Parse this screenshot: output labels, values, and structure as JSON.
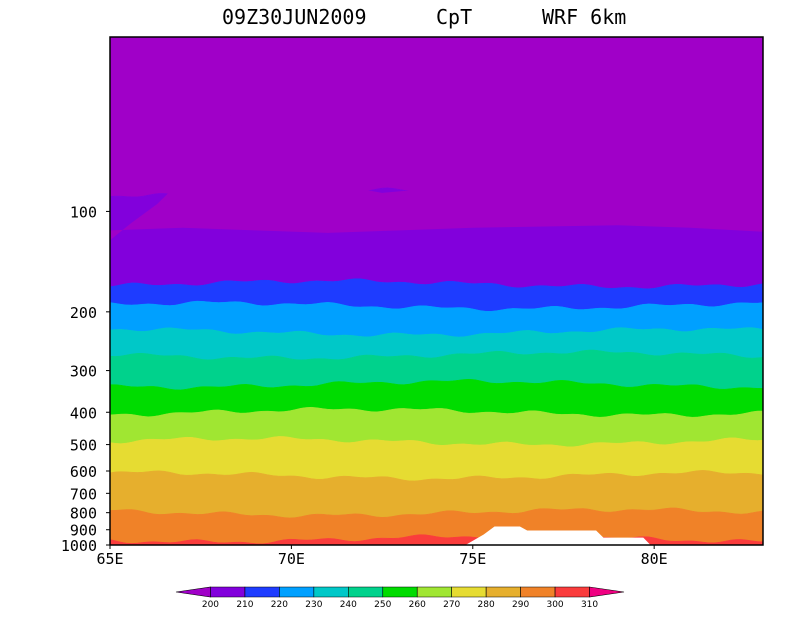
{
  "chart_data": {
    "type": "heatmap",
    "title_parts": [
      "09Z30JUN2009",
      "CpT",
      "WRF 6km"
    ],
    "xlabel": "",
    "ylabel": "",
    "x_range": [
      65,
      83
    ],
    "x_ticks": [
      {
        "value": 65,
        "label": "65E"
      },
      {
        "value": 70,
        "label": "70E"
      },
      {
        "value": 75,
        "label": "75E"
      },
      {
        "value": 80,
        "label": "80E"
      }
    ],
    "y_axis": "log-pressure (hPa)",
    "y_range": [
      1000,
      30
    ],
    "y_ticks": [
      {
        "value": 100,
        "label": "100"
      },
      {
        "value": 200,
        "label": "200"
      },
      {
        "value": 300,
        "label": "300"
      },
      {
        "value": 400,
        "label": "400"
      },
      {
        "value": 500,
        "label": "500"
      },
      {
        "value": 600,
        "label": "600"
      },
      {
        "value": 700,
        "label": "700"
      },
      {
        "value": 800,
        "label": "800"
      },
      {
        "value": 900,
        "label": "900"
      },
      {
        "value": 1000,
        "label": "1000"
      }
    ],
    "colorbar": {
      "levels": [
        "200",
        "210",
        "220",
        "230",
        "240",
        "250",
        "260",
        "270",
        "280",
        "290",
        "300",
        "310"
      ],
      "colors": [
        "#a000c8",
        "#8200dc",
        "#1e3cff",
        "#00a0ff",
        "#00c8c8",
        "#00d28c",
        "#00dc00",
        "#a0e632",
        "#e6dc32",
        "#e6af2d",
        "#f08228",
        "#fa3c3c",
        "#f00082"
      ]
    },
    "bands": [
      {
        "range": "<200",
        "color": "#a000c8",
        "upper_hpa": 30,
        "lower_hpa": 88
      },
      {
        "range": "200-210",
        "color": "#8200dc",
        "upper_hpa": 88,
        "lower_hpa": 165
      },
      {
        "range": "210-220",
        "color": "#1e3cff",
        "upper_hpa": 165,
        "lower_hpa": 192
      },
      {
        "range": "220-230",
        "color": "#00a0ff",
        "upper_hpa": 192,
        "lower_hpa": 230
      },
      {
        "range": "230-240",
        "color": "#00c8c8",
        "upper_hpa": 230,
        "lower_hpa": 270
      },
      {
        "range": "240-250",
        "color": "#00d28c",
        "upper_hpa": 270,
        "lower_hpa": 330
      },
      {
        "range": "250-260",
        "color": "#00dc00",
        "upper_hpa": 330,
        "lower_hpa": 400
      },
      {
        "range": "260-270",
        "color": "#a0e632",
        "upper_hpa": 400,
        "lower_hpa": 490
      },
      {
        "range": "270-280",
        "color": "#e6dc32",
        "upper_hpa": 490,
        "lower_hpa": 620
      },
      {
        "range": "280-290",
        "color": "#e6af2d",
        "upper_hpa": 620,
        "lower_hpa": 800
      },
      {
        "range": "290-300",
        "color": "#f08228",
        "upper_hpa": 800,
        "lower_hpa": 960
      },
      {
        "range": "300-310",
        "color": "#fa3c3c",
        "upper_hpa": 960,
        "lower_hpa": 1000
      }
    ],
    "terrain_mask": {
      "color": "#ffffff",
      "profile": [
        {
          "lon": 74.8,
          "hpa": 1000
        },
        {
          "lon": 75.3,
          "hpa": 930
        },
        {
          "lon": 75.6,
          "hpa": 880
        },
        {
          "lon": 76.3,
          "hpa": 880
        },
        {
          "lon": 76.5,
          "hpa": 905
        },
        {
          "lon": 78.4,
          "hpa": 905
        },
        {
          "lon": 78.6,
          "hpa": 950
        },
        {
          "lon": 79.7,
          "hpa": 950
        },
        {
          "lon": 79.9,
          "hpa": 1000
        }
      ]
    }
  }
}
